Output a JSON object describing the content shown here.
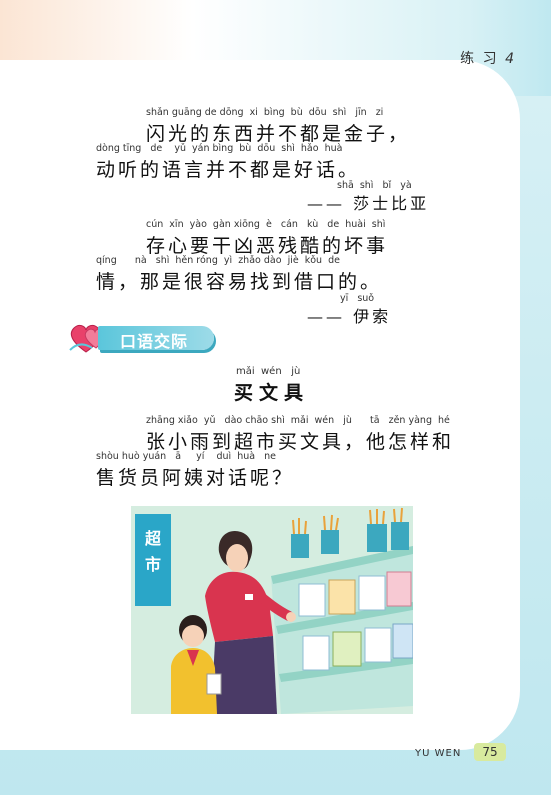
{
  "header": {
    "title": "练 习",
    "number": "4"
  },
  "quote1": {
    "line1_pinyin": "shǎn guāng de dōng  xi  bìng  bù  dōu  shì   jīn   zi",
    "line1_text": "闪光的东西并不都是金子，",
    "line2_pinyin": "dòng tīng   de    yǔ  yán bìng  bù  dōu  shì  hǎo  huà",
    "line2_text": "动听的语言并不都是好话。",
    "author_pinyin": "shā  shì   bǐ   yà",
    "author_text": "—— 莎士比亚"
  },
  "quote2": {
    "line1_pinyin": "cún  xīn  yào  gàn xiōng  è   cán   kù   de  huài  shì",
    "line1_text": "存心要干凶恶残酷的坏事",
    "line2_pinyin": "qíng      nà   shì  hěn róng  yì  zhǎo dào  jiè  kǒu  de",
    "line2_text": "情，那是很容易找到借口的。",
    "author_pinyin": "yī   suǒ",
    "author_text": "—— 伊索"
  },
  "section": {
    "label": "口语交际"
  },
  "lesson": {
    "title_pinyin": "mǎi  wén   jù",
    "title": "买文具",
    "para1_pinyin": "zhāng xiǎo  yǔ   dào chāo shì  mǎi  wén   jù      tā   zěn yàng  hé",
    "para1_text": "张小雨到超市买文具，他怎样和",
    "para2_pinyin": "shòu huò yuán   ā     yí    duì  huà   ne",
    "para2_text": "售货员阿姨对话呢？"
  },
  "illustration": {
    "sign_text": "超市"
  },
  "footer": {
    "label": "YU WEN",
    "page_number": "75"
  }
}
